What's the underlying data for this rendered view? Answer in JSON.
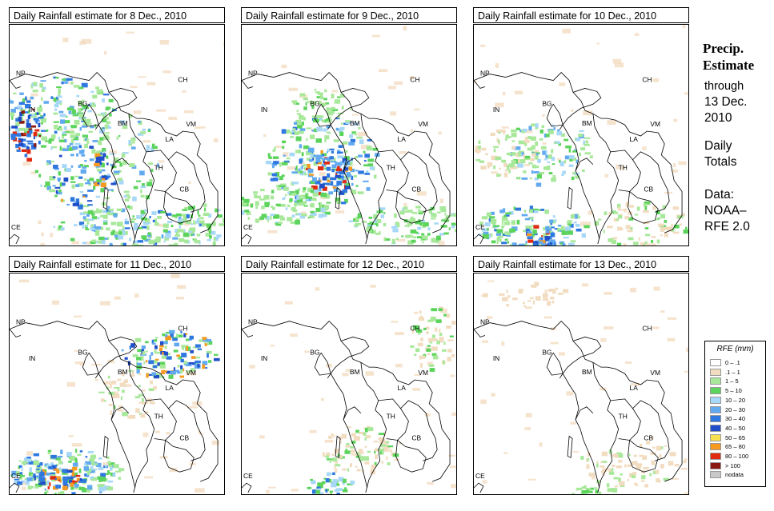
{
  "panels": [
    {
      "title": "Daily Rainfall estimate for  8 Dec., 2010",
      "intensity": "high-west"
    },
    {
      "title": "Daily Rainfall estimate for  9 Dec., 2010",
      "intensity": "high-central"
    },
    {
      "title": "Daily Rainfall estimate for  10 Dec., 2010",
      "intensity": "mid-south"
    },
    {
      "title": "Daily Rainfall estimate for  11 Dec., 2010",
      "intensity": "mid-southnorth"
    },
    {
      "title": "Daily Rainfall estimate for  12 Dec., 2010",
      "intensity": "low"
    },
    {
      "title": "Daily Rainfall estimate for  13 Dec., 2010",
      "intensity": "very-low"
    }
  ],
  "country_labels": [
    "NP",
    "CH",
    "IN",
    "BG",
    "BM",
    "VM",
    "LA",
    "TH",
    "CB",
    "CE"
  ],
  "sidebar": {
    "title_line1": "Precip.",
    "title_line2": "Estimate",
    "line3": "through",
    "line4": "13 Dec.",
    "line5": "2010",
    "line6": "Daily",
    "line7": "Totals",
    "line8": "Data:",
    "line9": "NOAA–",
    "line10": "RFE 2.0"
  },
  "legend": {
    "title": "RFE (mm)",
    "items": [
      {
        "label": "0 – .1",
        "color": "#ffffff"
      },
      {
        "label": ".1 – 1",
        "color": "#f2dcc0"
      },
      {
        "label": "1 – 5",
        "color": "#a8e89a"
      },
      {
        "label": "5 – 10",
        "color": "#5cd45c"
      },
      {
        "label": "10 – 20",
        "color": "#a8d8f8"
      },
      {
        "label": "20 – 30",
        "color": "#62aaf0"
      },
      {
        "label": "30 – 40",
        "color": "#2f78e0"
      },
      {
        "label": "40 – 50",
        "color": "#1f4ec8"
      },
      {
        "label": "50 – 65",
        "color": "#f8e050"
      },
      {
        "label": "65 – 80",
        "color": "#f89a20"
      },
      {
        "label": "80 – 100",
        "color": "#e02a10"
      },
      {
        "label": "> 100",
        "color": "#8a1a10"
      },
      {
        "label": "nodata",
        "color": "#c8c8c8"
      }
    ]
  }
}
